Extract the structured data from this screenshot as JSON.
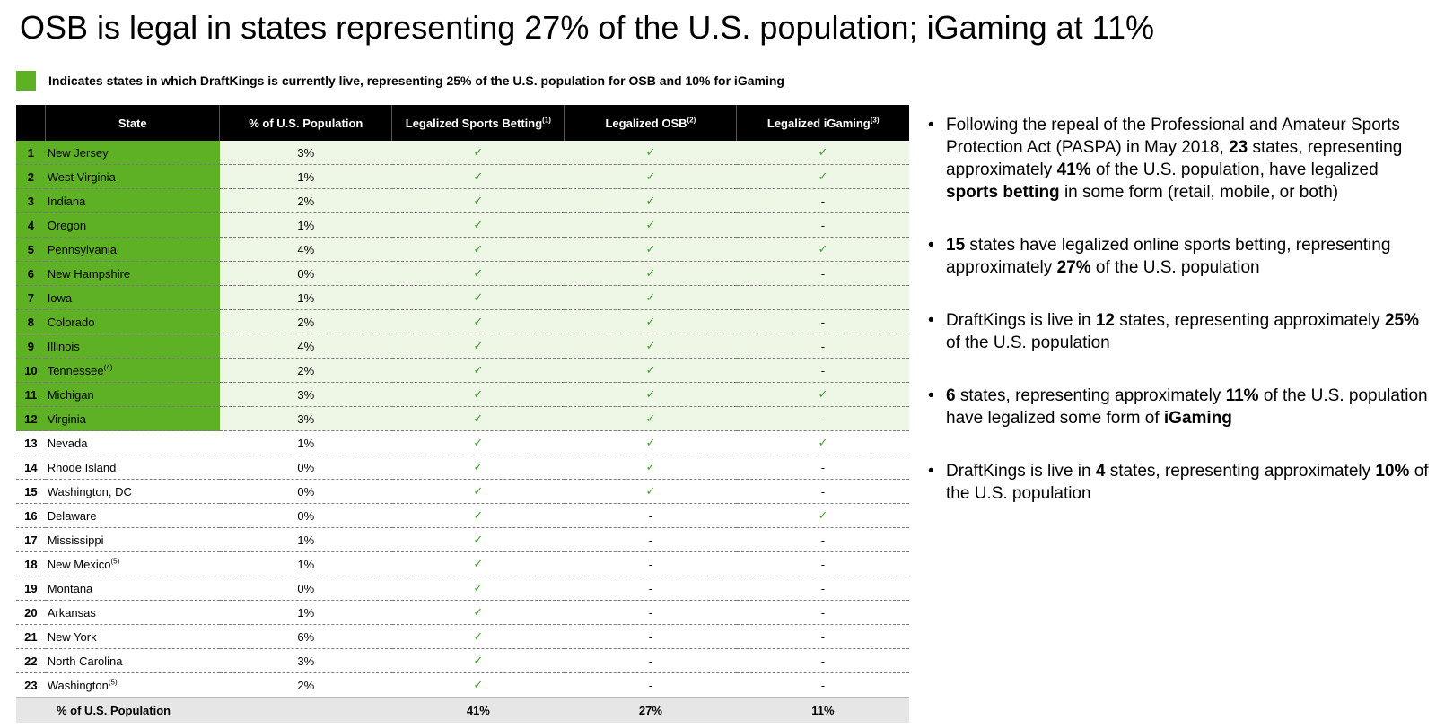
{
  "title": "OSB is legal in states representing 27% of the U.S. population; iGaming at 11%",
  "legend": {
    "text": "Indicates states in which DraftKings is currently live, representing 25% of the U.S. population for OSB and 10% for iGaming",
    "color": "#5eb024"
  },
  "table": {
    "headers": [
      {
        "text": "",
        "sup": ""
      },
      {
        "text": "State",
        "sup": ""
      },
      {
        "text": "% of U.S. Population",
        "sup": ""
      },
      {
        "text": "Legalized Sports Betting",
        "sup": "(1)"
      },
      {
        "text": "Legalized OSB",
        "sup": "(2)"
      },
      {
        "text": "Legalized iGaming",
        "sup": "(3)"
      }
    ],
    "rows": [
      {
        "num": "1",
        "state": "New Jersey",
        "sup": "",
        "pop": "3%",
        "sb": true,
        "osb": true,
        "ig": true,
        "live": true
      },
      {
        "num": "2",
        "state": "West Virginia",
        "sup": "",
        "pop": "1%",
        "sb": true,
        "osb": true,
        "ig": true,
        "live": true
      },
      {
        "num": "3",
        "state": "Indiana",
        "sup": "",
        "pop": "2%",
        "sb": true,
        "osb": true,
        "ig": false,
        "live": true
      },
      {
        "num": "4",
        "state": "Oregon",
        "sup": "",
        "pop": "1%",
        "sb": true,
        "osb": true,
        "ig": false,
        "live": true
      },
      {
        "num": "5",
        "state": "Pennsylvania",
        "sup": "",
        "pop": "4%",
        "sb": true,
        "osb": true,
        "ig": true,
        "live": true
      },
      {
        "num": "6",
        "state": "New Hampshire",
        "sup": "",
        "pop": "0%",
        "sb": true,
        "osb": true,
        "ig": false,
        "live": true
      },
      {
        "num": "7",
        "state": "Iowa",
        "sup": "",
        "pop": "1%",
        "sb": true,
        "osb": true,
        "ig": false,
        "live": true
      },
      {
        "num": "8",
        "state": "Colorado",
        "sup": "",
        "pop": "2%",
        "sb": true,
        "osb": true,
        "ig": false,
        "live": true
      },
      {
        "num": "9",
        "state": "Illinois",
        "sup": "",
        "pop": "4%",
        "sb": true,
        "osb": true,
        "ig": false,
        "live": true
      },
      {
        "num": "10",
        "state": "Tennessee",
        "sup": "(4)",
        "pop": "2%",
        "sb": true,
        "osb": true,
        "ig": false,
        "live": true
      },
      {
        "num": "11",
        "state": "Michigan",
        "sup": "",
        "pop": "3%",
        "sb": true,
        "osb": true,
        "ig": true,
        "live": true
      },
      {
        "num": "12",
        "state": "Virginia",
        "sup": "",
        "pop": "3%",
        "sb": true,
        "osb": true,
        "ig": false,
        "live": true
      },
      {
        "num": "13",
        "state": "Nevada",
        "sup": "",
        "pop": "1%",
        "sb": true,
        "osb": true,
        "ig": true,
        "live": false
      },
      {
        "num": "14",
        "state": "Rhode Island",
        "sup": "",
        "pop": "0%",
        "sb": true,
        "osb": true,
        "ig": false,
        "live": false
      },
      {
        "num": "15",
        "state": "Washington, DC",
        "sup": "",
        "pop": "0%",
        "sb": true,
        "osb": true,
        "ig": false,
        "live": false
      },
      {
        "num": "16",
        "state": "Delaware",
        "sup": "",
        "pop": "0%",
        "sb": true,
        "osb": false,
        "ig": true,
        "live": false
      },
      {
        "num": "17",
        "state": "Mississippi",
        "sup": "",
        "pop": "1%",
        "sb": true,
        "osb": false,
        "ig": false,
        "live": false
      },
      {
        "num": "18",
        "state": "New Mexico",
        "sup": "(5)",
        "pop": "1%",
        "sb": true,
        "osb": false,
        "ig": false,
        "live": false
      },
      {
        "num": "19",
        "state": "Montana",
        "sup": "",
        "pop": "0%",
        "sb": true,
        "osb": false,
        "ig": false,
        "live": false
      },
      {
        "num": "20",
        "state": "Arkansas",
        "sup": "",
        "pop": "1%",
        "sb": true,
        "osb": false,
        "ig": false,
        "live": false
      },
      {
        "num": "21",
        "state": "New York",
        "sup": "",
        "pop": "6%",
        "sb": true,
        "osb": false,
        "ig": false,
        "live": false
      },
      {
        "num": "22",
        "state": "North Carolina",
        "sup": "",
        "pop": "3%",
        "sb": true,
        "osb": false,
        "ig": false,
        "live": false
      },
      {
        "num": "23",
        "state": "Washington",
        "sup": "(5)",
        "pop": "2%",
        "sb": true,
        "osb": false,
        "ig": false,
        "live": false
      }
    ],
    "check_glyph": "✓",
    "dash_glyph": "-",
    "footer": {
      "label": "% of U.S. Population",
      "pop": "",
      "sb": "41%",
      "osb": "27%",
      "ig": "11%"
    }
  },
  "bullets": [
    [
      {
        "t": "Following the repeal of the Professional and Amateur Sports Protection Act (PASPA) in May 2018, ",
        "b": false
      },
      {
        "t": "23",
        "b": true
      },
      {
        "t": " states, representing approximately ",
        "b": false
      },
      {
        "t": "41%",
        "b": true
      },
      {
        "t": " of the U.S. population, have legalized ",
        "b": false
      },
      {
        "t": "sports betting",
        "b": true
      },
      {
        "t": " in some form (retail, mobile, or both)",
        "b": false
      }
    ],
    [
      {
        "t": "15",
        "b": true
      },
      {
        "t": " states have legalized online sports betting, representing approximately ",
        "b": false
      },
      {
        "t": "27%",
        "b": true
      },
      {
        "t": " of the U.S. population",
        "b": false
      }
    ],
    [
      {
        "t": "DraftKings is live in ",
        "b": false
      },
      {
        "t": "12",
        "b": true
      },
      {
        "t": " states, representing approximately ",
        "b": false
      },
      {
        "t": "25%",
        "b": true
      },
      {
        "t": " of the U.S. population",
        "b": false
      }
    ],
    [
      {
        "t": "6",
        "b": true
      },
      {
        "t": " states, representing approximately ",
        "b": false
      },
      {
        "t": "11%",
        "b": true
      },
      {
        "t": " of the U.S. population have legalized some form of ",
        "b": false
      },
      {
        "t": "iGaming",
        "b": true
      }
    ],
    [
      {
        "t": "DraftKings is live in ",
        "b": false
      },
      {
        "t": "4",
        "b": true
      },
      {
        "t": " states, representing approximately ",
        "b": false
      },
      {
        "t": "10%",
        "b": true
      },
      {
        "t": " of the U.S. population",
        "b": false
      }
    ]
  ],
  "bullet_glyph": "•"
}
